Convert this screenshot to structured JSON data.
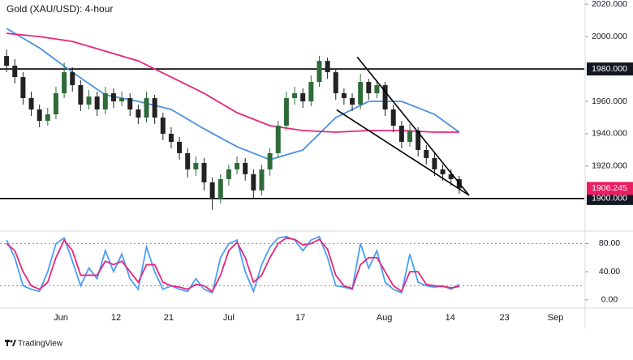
{
  "chart_data": [
    {
      "type": "candlestick",
      "title": "Gold (XAU/USD): 4-hour",
      "xlim": [
        -0.8,
        70.2
      ],
      "xticks": [
        {
          "value": 6.6,
          "label": "Jun"
        },
        {
          "value": 13.3,
          "label": "12"
        },
        {
          "value": 19.7,
          "label": "21"
        },
        {
          "value": 27.0,
          "label": "Jul"
        },
        {
          "value": 35.7,
          "label": "17"
        },
        {
          "value": 45.9,
          "label": "Aug"
        },
        {
          "value": 53.9,
          "label": "14"
        },
        {
          "value": 60.5,
          "label": "23"
        },
        {
          "value": 66.7,
          "label": "Sep"
        }
      ],
      "ylim": [
        1880.9,
        2022.6
      ],
      "yticks": [
        {
          "value": 2020,
          "label": "2020.000"
        },
        {
          "value": 2000,
          "label": "2000.000"
        },
        {
          "value": 1960,
          "label": "1960.000"
        },
        {
          "value": 1940,
          "label": "1940.000"
        },
        {
          "value": 1920,
          "label": "1920.000"
        }
      ],
      "up_color": "#2f6b3a",
      "down_color": "#222222",
      "last_color": "#e91e63",
      "open": [
        1988,
        1982,
        1975,
        1962,
        1955,
        1948,
        1952,
        1965,
        1978,
        1970,
        1958,
        1963,
        1955,
        1965,
        1960,
        1962,
        1955,
        1950,
        1962,
        1950,
        1940,
        1935,
        1928,
        1918,
        1922,
        1910,
        1900,
        1912,
        1918,
        1922,
        1915,
        1905,
        1918,
        1928,
        1945,
        1962,
        1965,
        1960,
        1972,
        1985,
        1978,
        1965,
        1962,
        1958,
        1972,
        1965,
        1970,
        1955,
        1945,
        1935,
        1942,
        1930,
        1925,
        1918,
        1915,
        1912
      ],
      "high": [
        1992,
        1986,
        1978,
        1966,
        1958,
        1956,
        1969,
        1984,
        1981,
        1973,
        1967,
        1966,
        1969,
        1968,
        1966,
        1965,
        1958,
        1966,
        1964,
        1953,
        1944,
        1938,
        1931,
        1926,
        1925,
        1913,
        1915,
        1921,
        1926,
        1925,
        1918,
        1921,
        1931,
        1948,
        1966,
        1969,
        1968,
        1976,
        1988,
        1987,
        1980,
        1968,
        1965,
        1977,
        1974,
        1973,
        1972,
        1958,
        1948,
        1946,
        1944,
        1933,
        1928,
        1921,
        1918,
        1914
      ],
      "low": [
        1978,
        1971,
        1958,
        1951,
        1944,
        1945,
        1949,
        1962,
        1966,
        1954,
        1955,
        1951,
        1952,
        1956,
        1957,
        1951,
        1946,
        1947,
        1946,
        1936,
        1931,
        1924,
        1913,
        1914,
        1905,
        1893,
        1897,
        1908,
        1915,
        1911,
        1900,
        1902,
        1914,
        1925,
        1942,
        1958,
        1956,
        1957,
        1969,
        1974,
        1961,
        1958,
        1954,
        1955,
        1961,
        1962,
        1951,
        1941,
        1931,
        1932,
        1926,
        1921,
        1914,
        1911,
        1908,
        1903
      ],
      "close": [
        1982,
        1975,
        1962,
        1955,
        1948,
        1952,
        1965,
        1978,
        1970,
        1958,
        1963,
        1955,
        1965,
        1960,
        1962,
        1955,
        1950,
        1962,
        1950,
        1940,
        1935,
        1928,
        1918,
        1922,
        1910,
        1900,
        1912,
        1918,
        1922,
        1915,
        1905,
        1918,
        1928,
        1945,
        1962,
        1965,
        1960,
        1972,
        1985,
        1978,
        1965,
        1962,
        1958,
        1972,
        1965,
        1970,
        1955,
        1945,
        1935,
        1942,
        1930,
        1925,
        1918,
        1915,
        1912,
        1906.245
      ],
      "series": [
        {
          "color": "#4a90e2",
          "x": [
            0,
            4,
            8,
            12,
            16,
            20,
            24,
            28,
            32,
            36,
            40,
            44,
            48,
            52,
            55
          ],
          "values": [
            2005,
            1993,
            1978,
            1964,
            1960,
            1955,
            1943,
            1932,
            1924,
            1930,
            1950,
            1960,
            1960,
            1952,
            1941
          ]
        },
        {
          "color": "#e6267a",
          "x": [
            0,
            4,
            8,
            12,
            16,
            20,
            24,
            28,
            32,
            36,
            40,
            44,
            48,
            52,
            55
          ],
          "values": [
            2002,
            2000,
            1997,
            1991,
            1985,
            1975,
            1965,
            1953,
            1945,
            1942,
            1941,
            1942,
            1942,
            1941,
            1941
          ]
        }
      ],
      "levels": [
        {
          "value": 1980,
          "label": "1980.000"
        },
        {
          "value": 1900,
          "label": "1900.000"
        }
      ],
      "trendlines": [
        {
          "x": [
            42.6,
            56.2
          ],
          "y": [
            1987.4,
            1902
          ]
        },
        {
          "x": [
            40.1,
            56.2
          ],
          "y": [
            1954.8,
            1902
          ]
        }
      ]
    },
    {
      "type": "line",
      "ylim": [
        -9.5,
        95.5
      ],
      "yticks": [
        {
          "value": 80,
          "label": "80.00"
        },
        {
          "value": 40,
          "label": "40.00"
        },
        {
          "value": 0,
          "label": "0.00"
        }
      ],
      "levels": [
        80,
        20
      ],
      "series": [
        {
          "color": "#4a9ff5",
          "values": [
            85,
            60,
            20,
            15,
            12,
            40,
            80,
            88,
            55,
            20,
            45,
            30,
            70,
            40,
            65,
            30,
            15,
            75,
            40,
            15,
            20,
            15,
            12,
            30,
            15,
            10,
            60,
            80,
            85,
            40,
            12,
            50,
            75,
            88,
            90,
            85,
            70,
            85,
            90,
            60,
            20,
            18,
            15,
            80,
            45,
            70,
            25,
            15,
            10,
            65,
            25,
            20,
            18,
            20,
            15,
            22
          ]
        },
        {
          "color": "#e6267a",
          "values": [
            80,
            70,
            40,
            20,
            15,
            25,
            60,
            85,
            70,
            35,
            35,
            35,
            55,
            50,
            55,
            40,
            25,
            50,
            50,
            25,
            20,
            18,
            15,
            22,
            20,
            12,
            35,
            70,
            82,
            60,
            25,
            35,
            60,
            80,
            88,
            86,
            78,
            80,
            86,
            72,
            35,
            20,
            16,
            50,
            60,
            60,
            40,
            20,
            12,
            40,
            40,
            22,
            20,
            19,
            17,
            19
          ]
        }
      ]
    }
  ],
  "brand": "TradingView"
}
